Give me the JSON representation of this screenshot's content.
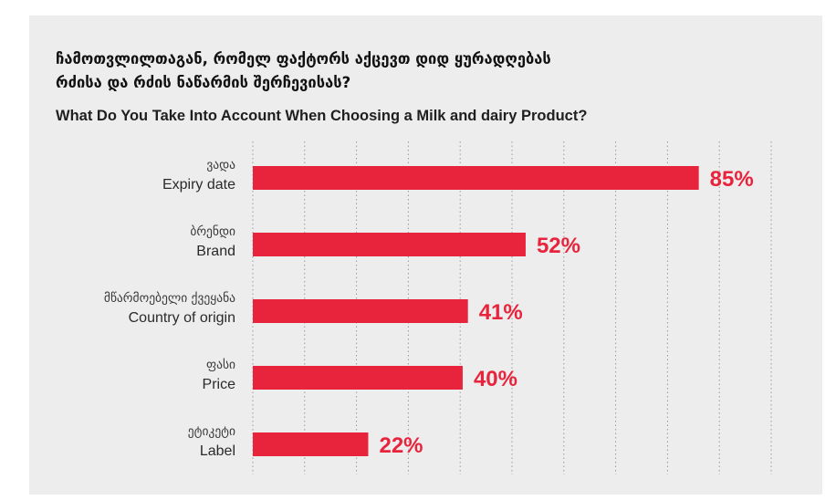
{
  "chart_data": {
    "type": "bar",
    "orientation": "horizontal",
    "title": "ჩამოთვლილთაგან, რომელ ფაქტორს აქცევთ დიდ ყურადღებას\nრძისა და რძის ნაწარმის შერჩევისას?",
    "subtitle": "What Do You Take Into Account When Choosing a Milk and dairy Product?",
    "categories": [
      {
        "label_ka": "ვადა",
        "label_en": "Expiry date"
      },
      {
        "label_ka": "ბრენდი",
        "label_en": "Brand"
      },
      {
        "label_ka": "მწარმოებელი ქვეყანა",
        "label_en": "Country of origin"
      },
      {
        "label_ka": "ფასი",
        "label_en": "Price"
      },
      {
        "label_ka": "ეტიკეტი",
        "label_en": "Label"
      }
    ],
    "values": [
      85,
      52,
      41,
      40,
      22
    ],
    "value_labels": [
      "85%",
      "52%",
      "41%",
      "40%",
      "22%"
    ],
    "xlim": [
      0,
      100
    ],
    "grid": "vertical-dotted",
    "colors": {
      "bar": "#e8243d",
      "value_text": "#e8243d",
      "background": "#ededee",
      "grid": "#9a9a9a"
    }
  }
}
